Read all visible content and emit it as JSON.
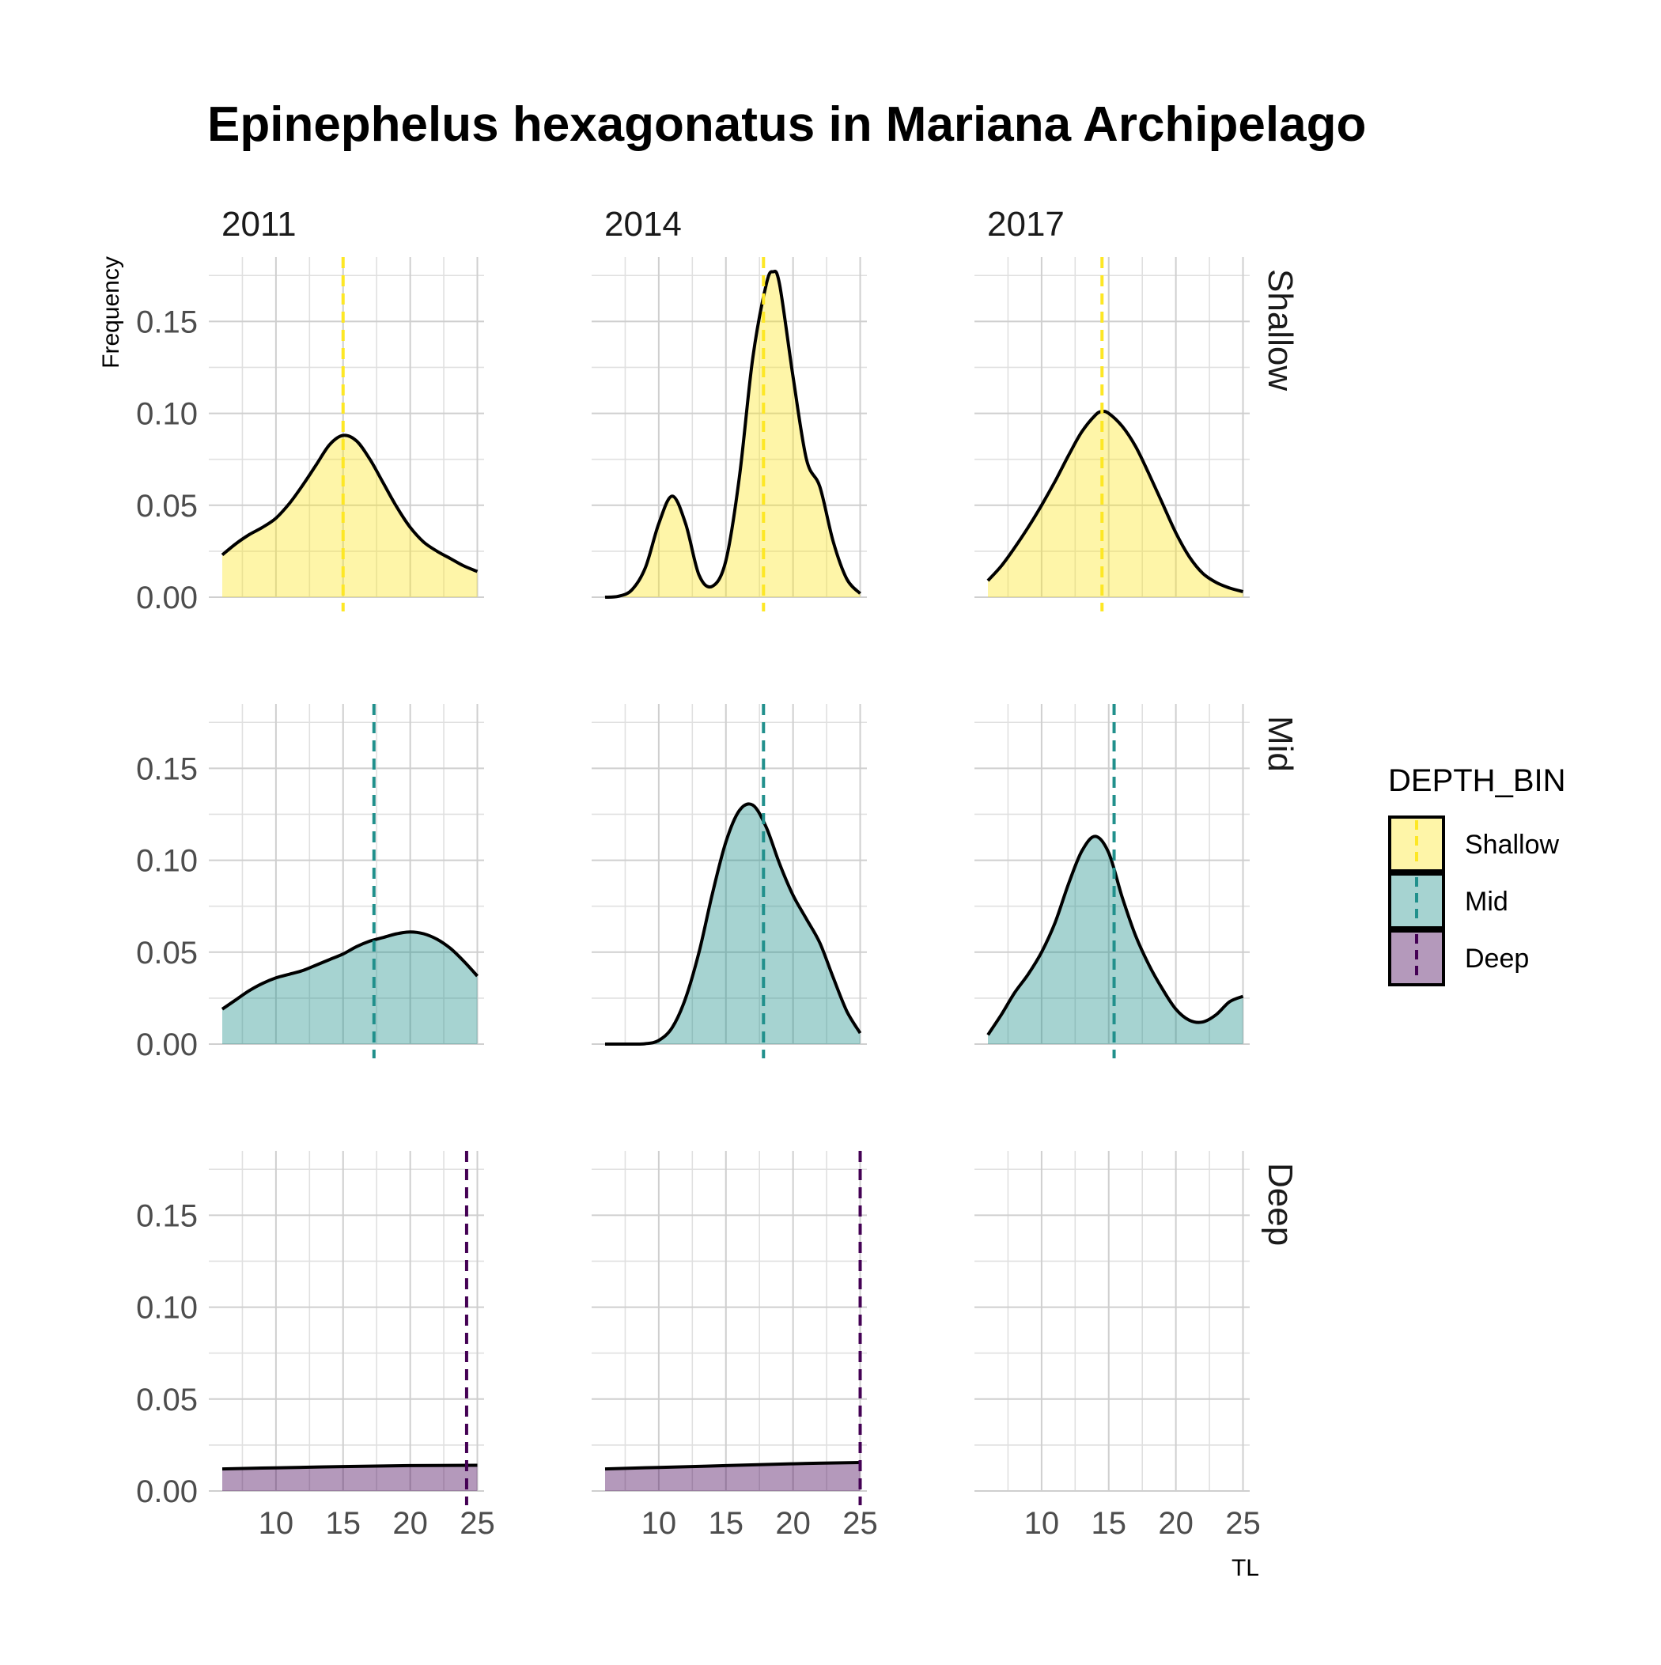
{
  "chart_data": {
    "type": "area",
    "title": "Epinephelus hexagonatus in Mariana Archipelago",
    "xlabel": "TL",
    "ylabel": "Frequency",
    "xlim": [
      5,
      25.5
    ],
    "ylim": [
      0,
      0.185
    ],
    "x_ticks": [
      10,
      15,
      20,
      25
    ],
    "y_ticks": [
      0.0,
      0.05,
      0.1,
      0.15
    ],
    "y_tick_labels": [
      "0.00",
      "0.05",
      "0.10",
      "0.15"
    ],
    "grid": true,
    "legend": {
      "title": "DEPTH_BIN",
      "position": "right",
      "entries": [
        "Shallow",
        "Mid",
        "Deep"
      ]
    },
    "colors": {
      "Shallow": "#FDE725",
      "Mid": "#21908C",
      "Deep": "#440154"
    },
    "columns": [
      "2011",
      "2014",
      "2017"
    ],
    "rows": [
      "Shallow",
      "Mid",
      "Deep"
    ],
    "panels": [
      {
        "year": "2011",
        "depth": "Shallow",
        "mean_line": 15.0,
        "x": [
          6,
          7,
          8,
          9,
          10,
          11,
          12,
          13,
          14,
          15,
          16,
          17,
          18,
          19,
          20,
          21,
          22,
          23,
          24,
          25
        ],
        "y": [
          0.023,
          0.029,
          0.034,
          0.038,
          0.043,
          0.051,
          0.061,
          0.072,
          0.083,
          0.088,
          0.085,
          0.075,
          0.062,
          0.049,
          0.038,
          0.03,
          0.025,
          0.021,
          0.017,
          0.014
        ]
      },
      {
        "year": "2014",
        "depth": "Shallow",
        "mean_line": 17.8,
        "x": [
          6,
          7,
          8,
          9,
          10,
          11,
          12,
          13,
          14,
          15,
          16,
          17,
          18,
          18.5,
          19,
          20,
          21,
          22,
          23,
          24,
          25
        ],
        "y": [
          0.0,
          0.0005,
          0.004,
          0.016,
          0.04,
          0.055,
          0.04,
          0.012,
          0.006,
          0.02,
          0.065,
          0.13,
          0.17,
          0.177,
          0.17,
          0.12,
          0.075,
          0.06,
          0.03,
          0.01,
          0.002
        ]
      },
      {
        "year": "2017",
        "depth": "Shallow",
        "mean_line": 14.5,
        "x": [
          6,
          7,
          8,
          9,
          10,
          11,
          12,
          13,
          14,
          14.5,
          15,
          16,
          17,
          18,
          19,
          20,
          21,
          22,
          23,
          24,
          25
        ],
        "y": [
          0.009,
          0.017,
          0.027,
          0.038,
          0.05,
          0.063,
          0.077,
          0.09,
          0.099,
          0.101,
          0.1,
          0.093,
          0.082,
          0.067,
          0.051,
          0.035,
          0.022,
          0.013,
          0.008,
          0.005,
          0.003
        ]
      },
      {
        "year": "2011",
        "depth": "Mid",
        "mean_line": 17.3,
        "x": [
          6,
          7,
          8,
          9,
          10,
          11,
          12,
          13,
          14,
          15,
          16,
          17,
          18,
          19,
          20,
          21,
          22,
          23,
          24,
          25
        ],
        "y": [
          0.019,
          0.024,
          0.029,
          0.033,
          0.036,
          0.038,
          0.04,
          0.043,
          0.046,
          0.049,
          0.053,
          0.056,
          0.058,
          0.06,
          0.061,
          0.06,
          0.057,
          0.052,
          0.045,
          0.037
        ]
      },
      {
        "year": "2014",
        "depth": "Mid",
        "mean_line": 17.8,
        "x": [
          6,
          7,
          8,
          9,
          10,
          11,
          12,
          13,
          14,
          15,
          16,
          17,
          18,
          19,
          20,
          21,
          22,
          23,
          24,
          25
        ],
        "y": [
          0.0,
          0.0,
          0.0,
          0.0002,
          0.002,
          0.009,
          0.025,
          0.05,
          0.082,
          0.11,
          0.127,
          0.13,
          0.118,
          0.098,
          0.081,
          0.068,
          0.055,
          0.036,
          0.018,
          0.006
        ]
      },
      {
        "year": "2017",
        "depth": "Mid",
        "mean_line": 15.4,
        "x": [
          6,
          7,
          8,
          9,
          10,
          11,
          12,
          13,
          14,
          15,
          16,
          17,
          18,
          19,
          20,
          21,
          22,
          23,
          24,
          25
        ],
        "y": [
          0.005,
          0.016,
          0.028,
          0.038,
          0.05,
          0.066,
          0.087,
          0.105,
          0.113,
          0.104,
          0.08,
          0.059,
          0.043,
          0.03,
          0.019,
          0.013,
          0.012,
          0.016,
          0.023,
          0.026
        ]
      },
      {
        "year": "2011",
        "depth": "Deep",
        "mean_line": 24.2,
        "x": [
          6,
          10,
          15,
          20,
          25
        ],
        "y": [
          0.012,
          0.0126,
          0.0133,
          0.0138,
          0.014
        ]
      },
      {
        "year": "2014",
        "depth": "Deep",
        "mean_line": 25.0,
        "x": [
          6,
          10,
          15,
          20,
          25
        ],
        "y": [
          0.012,
          0.0128,
          0.0138,
          0.0148,
          0.0155
        ]
      },
      {
        "year": "2017",
        "depth": "Deep",
        "mean_line": null,
        "x": [],
        "y": []
      }
    ]
  }
}
